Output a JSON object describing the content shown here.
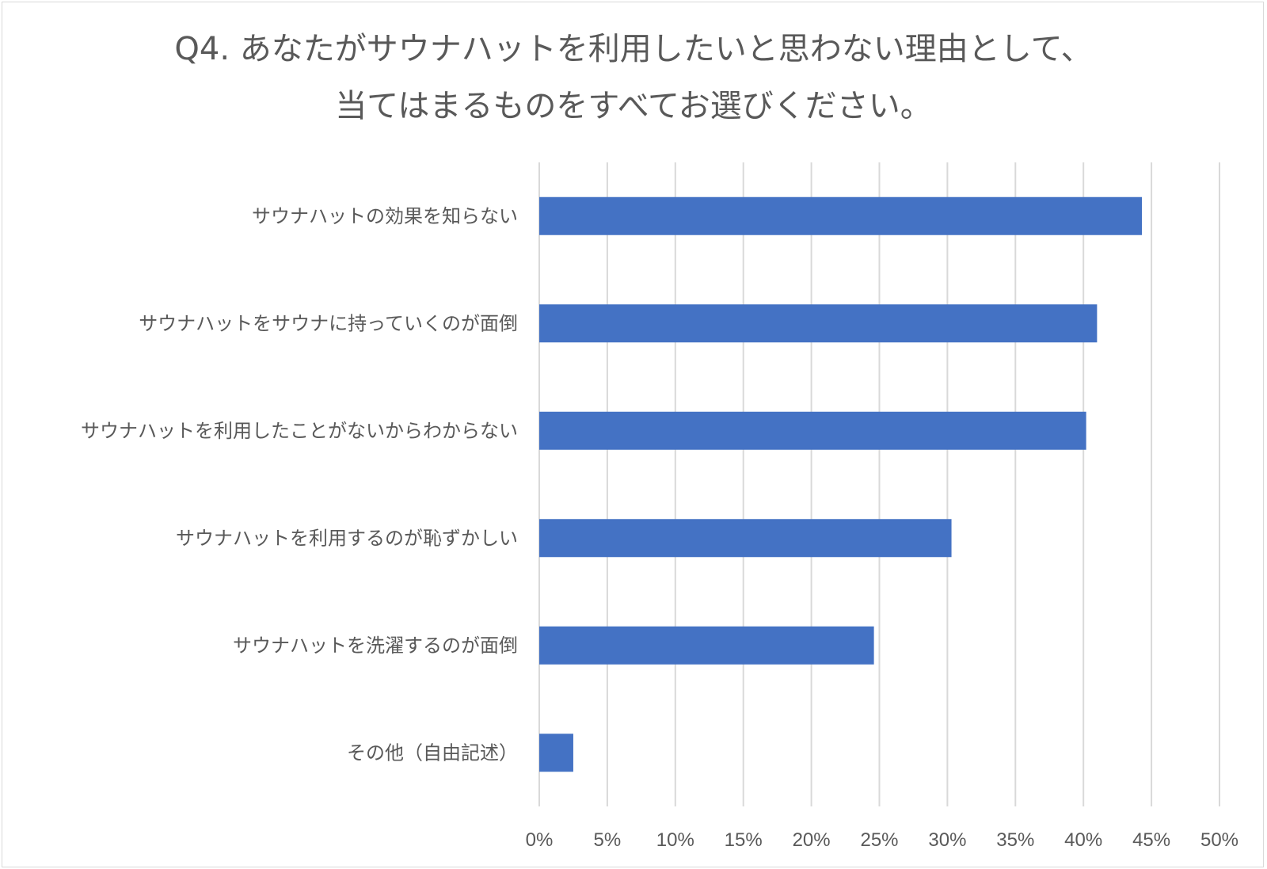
{
  "chart_data": {
    "type": "bar",
    "orientation": "horizontal",
    "title_lines": [
      "Q4. あなたがサウナハットを利用したいと思わない理由として、",
      "当てはまるものをすべてお選びください。"
    ],
    "categories": [
      "サウナハットの効果を知らない",
      "サウナハットをサウナに持っていくのが面倒",
      "サウナハットを利用したことがないからわからない",
      "サウナハットを利用するのが恥ずかしい",
      "サウナハットを洗濯するのが面倒",
      "その他（自由記述）"
    ],
    "values": [
      44.3,
      41.0,
      40.2,
      30.3,
      24.6,
      2.5
    ],
    "xlim": [
      0,
      50
    ],
    "x_ticks": [
      0,
      5,
      10,
      15,
      20,
      25,
      30,
      35,
      40,
      45,
      50
    ],
    "x_tick_labels": [
      "0%",
      "5%",
      "10%",
      "15%",
      "20%",
      "25%",
      "30%",
      "35%",
      "40%",
      "45%",
      "50%"
    ],
    "grid": "vertical",
    "legend": "none",
    "bar_color": "#4472C4",
    "grid_color": "#d9d9d9"
  }
}
